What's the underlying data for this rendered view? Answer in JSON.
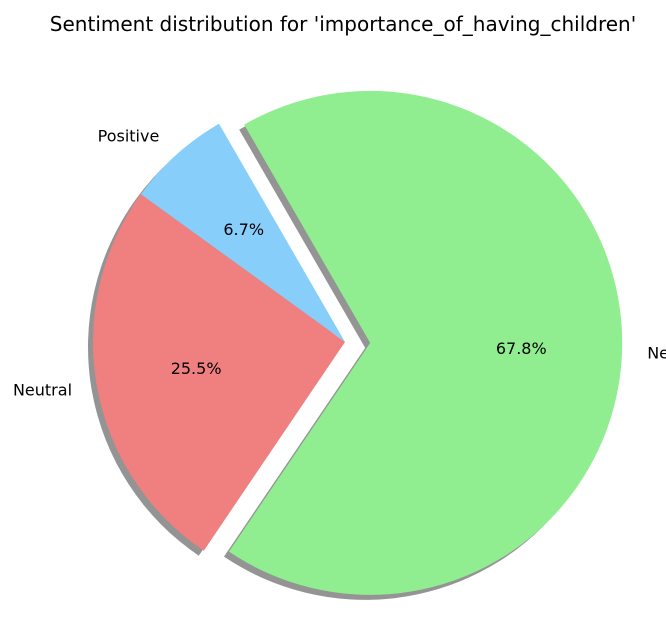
{
  "chart_data": {
    "type": "pie",
    "title": "Sentiment distribution for 'importance_of_having_children'",
    "slices": [
      {
        "label": "Positive",
        "value": 6.7,
        "pct_text": "6.7%",
        "color": "#87cefa",
        "exploded": false
      },
      {
        "label": "Neutral",
        "value": 25.5,
        "pct_text": "25.5%",
        "color": "#f08080",
        "exploded": false
      },
      {
        "label": "Negative",
        "value": 67.8,
        "pct_text": "67.8%",
        "color": "#90ee90",
        "exploded": true
      }
    ],
    "start_angle_deg": 120,
    "direction": "counterclockwise",
    "shadow": true,
    "legend": "none"
  }
}
